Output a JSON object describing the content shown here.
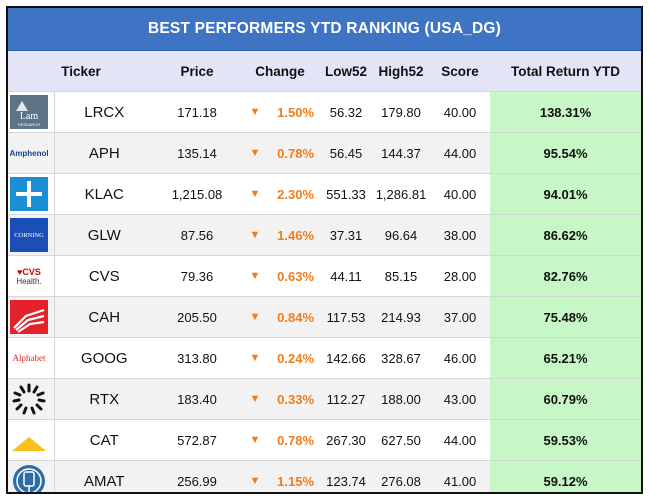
{
  "title": "BEST PERFORMERS YTD RANKING (USA_DG)",
  "headers": {
    "ticker": "Ticker",
    "price": "Price",
    "change": "Change",
    "low52": "Low52",
    "high52": "High52",
    "score": "Score",
    "total": "Total Return YTD"
  },
  "colors": {
    "header_bar": "#3e74c3",
    "column_header": "#e4e4f7",
    "change_negative": "#f07d1c",
    "total_return_bg": "#c7f7c6"
  },
  "rows": [
    {
      "logo": "Lam",
      "logo_sub": "RESEARCH",
      "ticker": "LRCX",
      "price": "171.18",
      "arrow": "▼",
      "change": "1.50%",
      "low52": "56.32",
      "high52": "179.80",
      "score": "40.00",
      "total": "138.31%"
    },
    {
      "logo": "Amphenol",
      "ticker": "APH",
      "price": "135.14",
      "arrow": "▼",
      "change": "0.78%",
      "low52": "56.45",
      "high52": "144.37",
      "score": "44.00",
      "total": "95.54%"
    },
    {
      "logo": "kla-plus-icon",
      "ticker": "KLAC",
      "price": "1,215.08",
      "arrow": "▼",
      "change": "2.30%",
      "low52": "551.33",
      "high52": "1,286.81",
      "score": "40.00",
      "total": "94.01%"
    },
    {
      "logo": "CORNING",
      "ticker": "GLW",
      "price": "87.56",
      "arrow": "▼",
      "change": "1.46%",
      "low52": "37.31",
      "high52": "96.64",
      "score": "38.00",
      "total": "86.62%"
    },
    {
      "logo": "CVS",
      "logo_sub": "Health.",
      "ticker": "CVS",
      "price": "79.36",
      "arrow": "▼",
      "change": "0.63%",
      "low52": "44.11",
      "high52": "85.15",
      "score": "28.00",
      "total": "82.76%"
    },
    {
      "logo": "cardinal-health-icon",
      "ticker": "CAH",
      "price": "205.50",
      "arrow": "▼",
      "change": "0.84%",
      "low52": "117.53",
      "high52": "214.93",
      "score": "37.00",
      "total": "75.48%"
    },
    {
      "logo": "Alphabet",
      "ticker": "GOOG",
      "price": "313.80",
      "arrow": "▼",
      "change": "0.24%",
      "low52": "142.66",
      "high52": "328.67",
      "score": "46.00",
      "total": "65.21%"
    },
    {
      "logo": "rtx-burst-icon",
      "ticker": "RTX",
      "price": "183.40",
      "arrow": "▼",
      "change": "0.33%",
      "low52": "112.27",
      "high52": "188.00",
      "score": "43.00",
      "total": "60.79%"
    },
    {
      "logo": "caterpillar-triangle-icon",
      "ticker": "CAT",
      "price": "572.87",
      "arrow": "▼",
      "change": "0.78%",
      "low52": "267.30",
      "high52": "627.50",
      "score": "44.00",
      "total": "59.53%"
    },
    {
      "logo": "applied-materials-icon",
      "ticker": "AMAT",
      "price": "256.99",
      "arrow": "▼",
      "change": "1.15%",
      "low52": "123.74",
      "high52": "276.08",
      "score": "41.00",
      "total": "59.12%"
    }
  ]
}
